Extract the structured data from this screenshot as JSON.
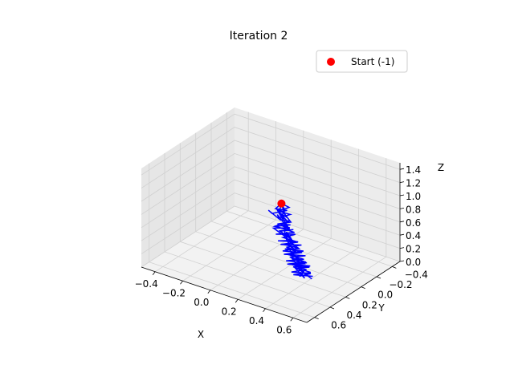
{
  "chart_data": {
    "type": "line3d",
    "title": "Iteration 2",
    "xlabel": "X",
    "ylabel": "Y",
    "zlabel": "Z",
    "x_ticks": [
      "−0.4",
      "−0.2",
      "0.0",
      "0.2",
      "0.4",
      "0.6"
    ],
    "y_ticks": [
      "−0.4",
      "−0.2",
      "0.0",
      "0.2",
      "0.4",
      "0.6"
    ],
    "z_ticks": [
      "0.0",
      "0.2",
      "0.4",
      "0.6",
      "0.8",
      "1.0",
      "1.2",
      "1.4"
    ],
    "xlim": [
      -0.5,
      0.7
    ],
    "ylim": [
      -0.5,
      0.7
    ],
    "zlim": [
      0.0,
      1.5
    ],
    "grid": true,
    "legend_position": "top-right",
    "series": [
      {
        "name": "",
        "color": "#0000ff",
        "points": [
          [
            0.15,
            0.05,
            0.92
          ],
          [
            0.19,
            0.08,
            0.88
          ],
          [
            0.14,
            0.02,
            0.84
          ],
          [
            0.21,
            0.1,
            0.8
          ],
          [
            0.13,
            0.04,
            0.76
          ],
          [
            0.22,
            0.09,
            0.72
          ],
          [
            0.12,
            0.0,
            0.68
          ],
          [
            0.24,
            0.11,
            0.64
          ],
          [
            0.15,
            0.06,
            0.6
          ],
          [
            0.2,
            0.03,
            0.57
          ],
          [
            0.11,
            0.08,
            0.54
          ],
          [
            0.23,
            0.12,
            0.51
          ],
          [
            0.17,
            0.02,
            0.48
          ],
          [
            0.26,
            0.1,
            0.45
          ],
          [
            0.18,
            0.05,
            0.42
          ],
          [
            0.27,
            0.13,
            0.39
          ],
          [
            0.19,
            0.04,
            0.36
          ],
          [
            0.29,
            0.11,
            0.33
          ],
          [
            0.21,
            0.07,
            0.3
          ],
          [
            0.31,
            0.14,
            0.27
          ],
          [
            0.22,
            0.05,
            0.24
          ],
          [
            0.32,
            0.12,
            0.21
          ],
          [
            0.24,
            0.08,
            0.18
          ],
          [
            0.34,
            0.15,
            0.15
          ],
          [
            0.25,
            0.06,
            0.12
          ],
          [
            0.36,
            0.13,
            0.09
          ],
          [
            0.27,
            0.09,
            0.06
          ],
          [
            0.38,
            0.16,
            0.03
          ],
          [
            0.3,
            0.07,
            0.0
          ]
        ]
      },
      {
        "name": "",
        "color": "#0000ff",
        "points": [
          [
            0.15,
            0.05,
            0.92
          ],
          [
            0.17,
            0.11,
            0.87
          ],
          [
            0.12,
            0.06,
            0.83
          ],
          [
            0.2,
            0.13,
            0.79
          ],
          [
            0.14,
            0.01,
            0.75
          ],
          [
            0.23,
            0.07,
            0.71
          ],
          [
            0.16,
            0.12,
            0.67
          ],
          [
            0.21,
            0.04,
            0.63
          ],
          [
            0.13,
            0.09,
            0.59
          ],
          [
            0.25,
            0.06,
            0.56
          ],
          [
            0.16,
            0.14,
            0.53
          ],
          [
            0.24,
            0.03,
            0.5
          ],
          [
            0.19,
            0.1,
            0.47
          ],
          [
            0.28,
            0.07,
            0.44
          ],
          [
            0.2,
            0.15,
            0.41
          ],
          [
            0.29,
            0.04,
            0.38
          ],
          [
            0.22,
            0.11,
            0.35
          ],
          [
            0.31,
            0.08,
            0.32
          ],
          [
            0.23,
            0.16,
            0.29
          ],
          [
            0.33,
            0.06,
            0.26
          ],
          [
            0.25,
            0.12,
            0.23
          ],
          [
            0.35,
            0.09,
            0.2
          ],
          [
            0.26,
            0.17,
            0.17
          ],
          [
            0.37,
            0.07,
            0.14
          ],
          [
            0.28,
            0.13,
            0.11
          ],
          [
            0.39,
            0.1,
            0.08
          ],
          [
            0.31,
            0.18,
            0.05
          ],
          [
            0.4,
            0.09,
            0.02
          ]
        ]
      },
      {
        "name": "",
        "color": "#0000ff",
        "points": [
          [
            0.15,
            0.05,
            0.92
          ],
          [
            0.13,
            0.09,
            0.86
          ],
          [
            0.18,
            0.03,
            0.82
          ],
          [
            0.11,
            0.1,
            0.78
          ],
          [
            0.05,
            0.04,
            0.74
          ],
          [
            0.16,
            0.08,
            0.7
          ],
          [
            0.19,
            0.02,
            0.66
          ],
          [
            0.14,
            0.12,
            0.62
          ],
          [
            0.22,
            0.07,
            0.58
          ],
          [
            0.15,
            0.01,
            0.55
          ],
          [
            0.21,
            0.11,
            0.52
          ],
          [
            0.18,
            0.05,
            0.49
          ],
          [
            0.25,
            0.09,
            0.46
          ],
          [
            0.17,
            0.13,
            0.43
          ],
          [
            0.26,
            0.03,
            0.4
          ],
          [
            0.2,
            0.1,
            0.37
          ],
          [
            0.28,
            0.06,
            0.34
          ],
          [
            0.21,
            0.14,
            0.31
          ],
          [
            0.3,
            0.05,
            0.28
          ],
          [
            0.23,
            0.11,
            0.25
          ],
          [
            0.33,
            0.08,
            0.22
          ],
          [
            0.24,
            0.15,
            0.19
          ],
          [
            0.34,
            0.06,
            0.16
          ],
          [
            0.27,
            0.12,
            0.13
          ],
          [
            0.36,
            0.1,
            0.1
          ],
          [
            0.29,
            0.17,
            0.07
          ],
          [
            0.38,
            0.08,
            0.04
          ],
          [
            0.33,
            0.14,
            0.01
          ]
        ]
      },
      {
        "name": "",
        "color": "#0000ff",
        "points": [
          [
            0.15,
            0.05,
            0.92
          ],
          [
            0.2,
            0.04,
            0.89
          ],
          [
            0.16,
            0.1,
            0.85
          ],
          [
            0.22,
            0.06,
            0.81
          ],
          [
            0.17,
            0.12,
            0.77
          ],
          [
            0.12,
            0.05,
            0.73
          ],
          [
            0.2,
            0.1,
            0.69
          ],
          [
            0.14,
            0.03,
            0.65
          ],
          [
            0.23,
            0.09,
            0.61
          ],
          [
            0.18,
            0.13,
            0.58
          ],
          [
            0.22,
            0.02,
            0.55
          ],
          [
            0.15,
            0.07,
            0.52
          ],
          [
            0.26,
            0.11,
            0.49
          ],
          [
            0.2,
            0.04,
            0.46
          ],
          [
            0.27,
            0.12,
            0.43
          ],
          [
            0.21,
            0.06,
            0.4
          ],
          [
            0.3,
            0.09,
            0.37
          ],
          [
            0.22,
            0.13,
            0.34
          ],
          [
            0.31,
            0.05,
            0.31
          ],
          [
            0.25,
            0.1,
            0.28
          ],
          [
            0.34,
            0.14,
            0.25
          ],
          [
            0.26,
            0.07,
            0.22
          ],
          [
            0.35,
            0.11,
            0.19
          ],
          [
            0.28,
            0.15,
            0.16
          ],
          [
            0.37,
            0.08,
            0.13
          ],
          [
            0.3,
            0.12,
            0.1
          ],
          [
            0.39,
            0.14,
            0.07
          ],
          [
            0.32,
            0.09,
            0.04
          ],
          [
            0.41,
            0.12,
            0.01
          ]
        ]
      }
    ],
    "start_marker": {
      "label": "Start (-1)",
      "point": [
        0.15,
        0.05,
        0.92
      ],
      "color": "#ff0000"
    }
  }
}
